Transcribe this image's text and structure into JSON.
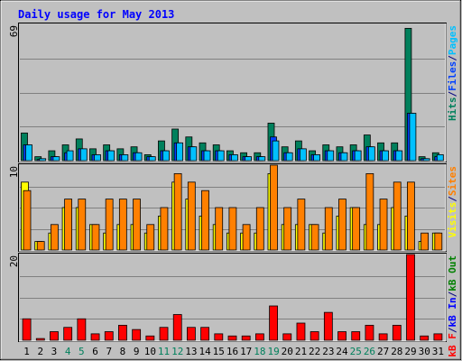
{
  "chart_data": [
    {
      "type": "bar",
      "title": "Daily usage for May 2013",
      "categories": [
        "1",
        "2",
        "3",
        "4",
        "5",
        "6",
        "7",
        "8",
        "9",
        "10",
        "11",
        "12",
        "13",
        "14",
        "15",
        "16",
        "17",
        "18",
        "19",
        "20",
        "21",
        "22",
        "23",
        "24",
        "25",
        "26",
        "27",
        "28",
        "29",
        "30",
        "31"
      ],
      "weekend_categories": [
        "4",
        "5",
        "11",
        "12",
        "18",
        "19",
        "25",
        "26"
      ],
      "ymax_label": "69",
      "ylim": [
        0,
        69
      ],
      "grid": true,
      "ylabel_parts": [
        {
          "text": "Hits",
          "color": "#00805c"
        },
        {
          "text": "/",
          "color": "#000080"
        },
        {
          "text": "Files",
          "color": "#0040ff"
        },
        {
          "text": "/",
          "color": "#000080"
        },
        {
          "text": "Pages",
          "color": "#00c0ff"
        }
      ],
      "series": [
        {
          "key": "hits",
          "color": "#00805c",
          "values": [
            14,
            2,
            5,
            8,
            11,
            6,
            8,
            6,
            7,
            3,
            10,
            16,
            12,
            9,
            8,
            5,
            4,
            4,
            19,
            7,
            10,
            5,
            8,
            7,
            8,
            13,
            9,
            9,
            67,
            2,
            4
          ]
        },
        {
          "key": "files",
          "color": "#0040ff",
          "values": [
            8,
            0,
            2,
            4,
            6,
            3,
            5,
            3,
            4,
            2,
            5,
            9,
            7,
            5,
            5,
            3,
            2,
            2,
            12,
            4,
            6,
            3,
            5,
            4,
            5,
            7,
            5,
            5,
            24,
            1,
            2
          ]
        },
        {
          "key": "pages",
          "color": "#00c0ff",
          "values": [
            8,
            1,
            2,
            5,
            6,
            3,
            5,
            3,
            4,
            2,
            5,
            9,
            7,
            5,
            5,
            3,
            2,
            2,
            10,
            4,
            6,
            3,
            5,
            4,
            5,
            7,
            5,
            5,
            24,
            1,
            3
          ]
        }
      ]
    },
    {
      "type": "bar",
      "ymax_label": "10",
      "ylim": [
        0,
        10
      ],
      "grid": true,
      "ylabel_parts": [
        {
          "text": "Visits",
          "color": "#ffff00"
        },
        {
          "text": "/",
          "color": "#000080"
        },
        {
          "text": "Sites",
          "color": "#ff8000"
        }
      ],
      "series": [
        {
          "key": "visits",
          "color": "#ffff00",
          "values": [
            8,
            1,
            2,
            5,
            5,
            3,
            2,
            3,
            3,
            2,
            4,
            8,
            6,
            4,
            3,
            2,
            2,
            2,
            9,
            3,
            3,
            3,
            2,
            4,
            5,
            3,
            3,
            5,
            4,
            1,
            2
          ]
        },
        {
          "key": "sites",
          "color": "#ff8000",
          "values": [
            7,
            1,
            3,
            6,
            6,
            3,
            6,
            6,
            6,
            3,
            5,
            9,
            8,
            7,
            5,
            5,
            3,
            5,
            10,
            5,
            6,
            3,
            5,
            6,
            5,
            9,
            6,
            8,
            8,
            2,
            2
          ]
        }
      ]
    },
    {
      "type": "bar",
      "ymax_label": "20",
      "ylim": [
        0,
        20
      ],
      "grid": true,
      "ylabel_parts": [
        {
          "text": "kB F",
          "color": "#ff0000"
        },
        {
          "text": "/",
          "color": "#000080"
        },
        {
          "text": "kB In",
          "color": "#0000ff"
        },
        {
          "text": "/",
          "color": "#000080"
        },
        {
          "text": "kB Out",
          "color": "#008000"
        }
      ],
      "series": [
        {
          "key": "kbf",
          "color": "#ff0000",
          "values": [
            5,
            0.4,
            2,
            3,
            5,
            1.5,
            2,
            3.5,
            2.5,
            1,
            3,
            6,
            3,
            3,
            1.5,
            1,
            1,
            1.5,
            8,
            1.5,
            4,
            2,
            6.5,
            2,
            2,
            3.5,
            1.5,
            3.5,
            20,
            1,
            1.5
          ]
        }
      ]
    }
  ]
}
